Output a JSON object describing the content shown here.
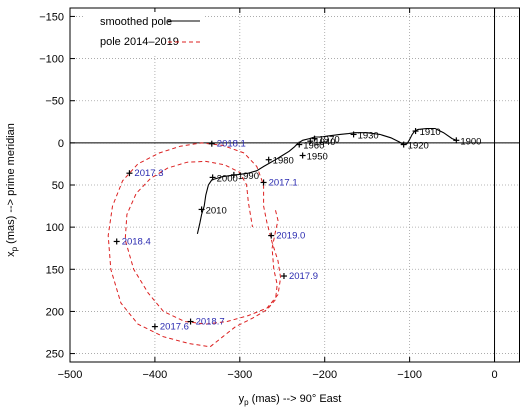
{
  "chart_data": {
    "type": "line",
    "xlabel": {
      "base": "y",
      "sub": "p",
      "rest": " (mas) --> 90° East"
    },
    "ylabel": {
      "base": "x",
      "sub": "p",
      "rest": " (mas) --> prime meridian"
    },
    "xlim": [
      -500,
      30
    ],
    "ylim": [
      260,
      -160
    ],
    "y_inverted": true,
    "xticks": [
      -500,
      -400,
      -300,
      -200,
      -100,
      0
    ],
    "yticks": [
      -150,
      -100,
      -50,
      0,
      50,
      100,
      150,
      200,
      250
    ],
    "grid": "dotted",
    "reference_lines": {
      "x": 0,
      "y": 0
    },
    "legend_position": "top-left",
    "series": [
      {
        "name": "smoothed pole",
        "color": "#000000",
        "style": "solid",
        "points": [
          [
            -350,
            108
          ],
          [
            -347,
            95
          ],
          [
            -345,
            85
          ],
          [
            -342,
            75
          ],
          [
            -340,
            62
          ],
          [
            -337,
            50
          ],
          [
            -333,
            44
          ],
          [
            -320,
            40
          ],
          [
            -305,
            38
          ],
          [
            -290,
            36
          ],
          [
            -280,
            33
          ],
          [
            -272,
            28
          ],
          [
            -265,
            24
          ],
          [
            -258,
            20
          ],
          [
            -250,
            15
          ],
          [
            -242,
            10
          ],
          [
            -236,
            5
          ],
          [
            -232,
            1
          ],
          [
            -226,
            -3
          ],
          [
            -218,
            -5
          ],
          [
            -212,
            -7
          ],
          [
            -204,
            -7
          ],
          [
            -197,
            -8
          ],
          [
            -190,
            -9
          ],
          [
            -182,
            -10
          ],
          [
            -172,
            -11
          ],
          [
            -164,
            -12
          ],
          [
            -150,
            -12
          ],
          [
            -135,
            -10
          ],
          [
            -122,
            -6
          ],
          [
            -112,
            -1
          ],
          [
            -107,
            2
          ],
          [
            -103,
            1
          ],
          [
            -100,
            -4
          ],
          [
            -97,
            -10
          ],
          [
            -94,
            -14
          ],
          [
            -90,
            -16
          ],
          [
            -80,
            -17
          ],
          [
            -70,
            -17
          ],
          [
            -60,
            -12
          ],
          [
            -50,
            -5
          ],
          [
            -45,
            -3
          ]
        ]
      },
      {
        "name": "pole 2014–2019",
        "color": "#dc2020",
        "style": "dashed",
        "points": [
          [
            -258,
            80
          ],
          [
            -255,
            92
          ],
          [
            -258,
            105
          ],
          [
            -262,
            125
          ],
          [
            -260,
            150
          ],
          [
            -256,
            168
          ],
          [
            -258,
            186
          ],
          [
            -268,
            198
          ],
          [
            -285,
            208
          ],
          [
            -305,
            218
          ],
          [
            -320,
            230
          ],
          [
            -335,
            242
          ],
          [
            -360,
            238
          ],
          [
            -390,
            230
          ],
          [
            -420,
            215
          ],
          [
            -440,
            190
          ],
          [
            -452,
            150
          ],
          [
            -455,
            110
          ],
          [
            -450,
            75
          ],
          [
            -438,
            45
          ],
          [
            -420,
            25
          ],
          [
            -395,
            12
          ],
          [
            -370,
            4
          ],
          [
            -345,
            0
          ],
          [
            -320,
            3
          ],
          [
            -295,
            12
          ],
          [
            -280,
            28
          ],
          [
            -272,
            50
          ],
          [
            -272,
            75
          ],
          [
            -268,
            95
          ],
          [
            -262,
            118
          ],
          [
            -255,
            140
          ],
          [
            -252,
            160
          ],
          [
            -255,
            180
          ],
          [
            -268,
            196
          ],
          [
            -290,
            205
          ],
          [
            -315,
            212
          ],
          [
            -340,
            215
          ],
          [
            -365,
            212
          ],
          [
            -390,
            200
          ],
          [
            -408,
            178
          ],
          [
            -425,
            150
          ],
          [
            -435,
            115
          ],
          [
            -433,
            85
          ],
          [
            -422,
            60
          ],
          [
            -405,
            42
          ],
          [
            -385,
            30
          ],
          [
            -362,
            23
          ],
          [
            -340,
            22
          ],
          [
            -318,
            26
          ],
          [
            -300,
            35
          ],
          [
            -292,
            50
          ],
          [
            -290,
            70
          ],
          [
            -285,
            100
          ]
        ]
      }
    ],
    "epochs_black": [
      {
        "label": "1900",
        "x": -45,
        "y": -3
      },
      {
        "label": "1910",
        "x": -93,
        "y": -14
      },
      {
        "label": "1920",
        "x": -107,
        "y": 2
      },
      {
        "label": "1930",
        "x": -166,
        "y": -10
      },
      {
        "label": "1940",
        "x": -217,
        "y": -2
      },
      {
        "label": "1950",
        "x": -226,
        "y": 15
      },
      {
        "label": "1960",
        "x": -230,
        "y": 2
      },
      {
        "label": "1970",
        "x": -212,
        "y": -5
      },
      {
        "label": "1980",
        "x": -266,
        "y": 20
      },
      {
        "label": "1990",
        "x": -307,
        "y": 38
      },
      {
        "label": "2000",
        "x": -332,
        "y": 41
      },
      {
        "label": "2010",
        "x": -345,
        "y": 79
      }
    ],
    "epochs_blue": [
      {
        "label": "2018.1",
        "x": -333,
        "y": 1
      },
      {
        "label": "2017.3",
        "x": -430,
        "y": 36
      },
      {
        "label": "2017.1",
        "x": -272,
        "y": 47
      },
      {
        "label": "2018.4",
        "x": -445,
        "y": 117
      },
      {
        "label": "2019.0",
        "x": -263,
        "y": 110
      },
      {
        "label": "2017.9",
        "x": -248,
        "y": 158
      },
      {
        "label": "2018.7",
        "x": -358,
        "y": 212
      },
      {
        "label": "2017.6",
        "x": -400,
        "y": 218
      }
    ],
    "colors": {
      "annotation_blue": "#2a2ab0",
      "crosshair": "#000000",
      "grid": "#a0a0a0"
    }
  }
}
